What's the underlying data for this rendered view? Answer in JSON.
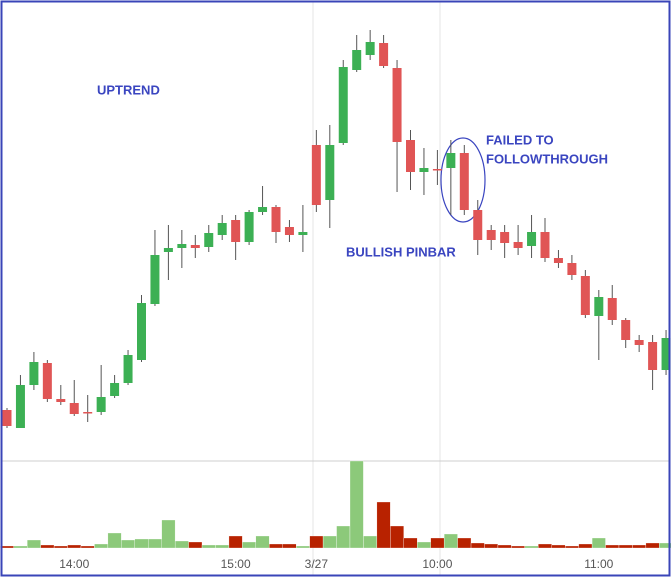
{
  "chart_data": {
    "type": "candlestick",
    "categories": [
      null,
      null,
      null,
      null,
      null,
      "14:00",
      null,
      null,
      null,
      null,
      null,
      null,
      null,
      null,
      null,
      null,
      null,
      "15:00",
      null,
      null,
      null,
      null,
      null,
      "3/27",
      null,
      null,
      null,
      null,
      null,
      null,
      null,
      null,
      "10:00",
      null,
      null,
      null,
      null,
      null,
      null,
      null,
      null,
      null,
      null,
      null,
      "11:00",
      null,
      null,
      null,
      null,
      null
    ],
    "open": [
      50,
      32,
      75,
      97,
      61,
      57,
      48,
      48,
      64,
      77,
      100,
      156,
      208,
      212,
      215,
      213,
      225,
      240,
      218,
      248,
      253,
      233,
      225,
      315,
      260,
      317,
      390,
      405,
      417,
      392,
      320,
      288,
      291,
      292,
      307,
      250,
      230,
      228,
      218,
      214,
      228,
      202,
      197,
      184,
      144,
      162,
      140,
      120,
      118,
      90
    ],
    "high": [
      52,
      85,
      108,
      100,
      75,
      80,
      65,
      95,
      85,
      110,
      165,
      230,
      235,
      230,
      225,
      235,
      245,
      245,
      250,
      274,
      255,
      240,
      255,
      330,
      335,
      400,
      425,
      430,
      425,
      400,
      330,
      312,
      310,
      320,
      315,
      260,
      235,
      235,
      235,
      245,
      242,
      210,
      205,
      190,
      170,
      175,
      142,
      125,
      125,
      130
    ],
    "low": [
      32,
      32,
      70,
      58,
      55,
      44,
      38,
      45,
      62,
      75,
      98,
      154,
      180,
      192,
      202,
      208,
      220,
      200,
      215,
      245,
      217,
      218,
      208,
      248,
      232,
      315,
      388,
      400,
      392,
      268,
      270,
      265,
      275,
      245,
      245,
      205,
      210,
      202,
      205,
      202,
      198,
      192,
      180,
      142,
      100,
      135,
      112,
      108,
      70,
      85
    ],
    "close": [
      34,
      75,
      98,
      61,
      58,
      46,
      47,
      63,
      77,
      105,
      157,
      205,
      212,
      216,
      212,
      227,
      237,
      218,
      248,
      253,
      228,
      225,
      228,
      255,
      315,
      393,
      410,
      418,
      394,
      318,
      288,
      292,
      290,
      307,
      250,
      220,
      220,
      217,
      212,
      228,
      202,
      197,
      185,
      145,
      163,
      140,
      120,
      115,
      90,
      122
    ],
    "volume": [
      2,
      2,
      8,
      3,
      2,
      3,
      2,
      4,
      15,
      8,
      9,
      9,
      28,
      7,
      6,
      3,
      3,
      12,
      6,
      12,
      4,
      4,
      2,
      12,
      12,
      22,
      87,
      12,
      46,
      22,
      10,
      6,
      10,
      14,
      10,
      5,
      4,
      3,
      2,
      2,
      4,
      3,
      2,
      4,
      10,
      3,
      3,
      3,
      5,
      5
    ],
    "ylim": [
      20,
      440
    ],
    "volume_lim": [
      0,
      87
    ],
    "up_color": "#3cb054",
    "down_color": "#e05555",
    "up_volume_color": "#8cc97a",
    "down_volume_color": "#b82200",
    "annotations": [
      "UPTREND",
      "BULLISH PINBAR",
      "FAILED TO",
      "FOLLOWTHROUGH"
    ]
  }
}
